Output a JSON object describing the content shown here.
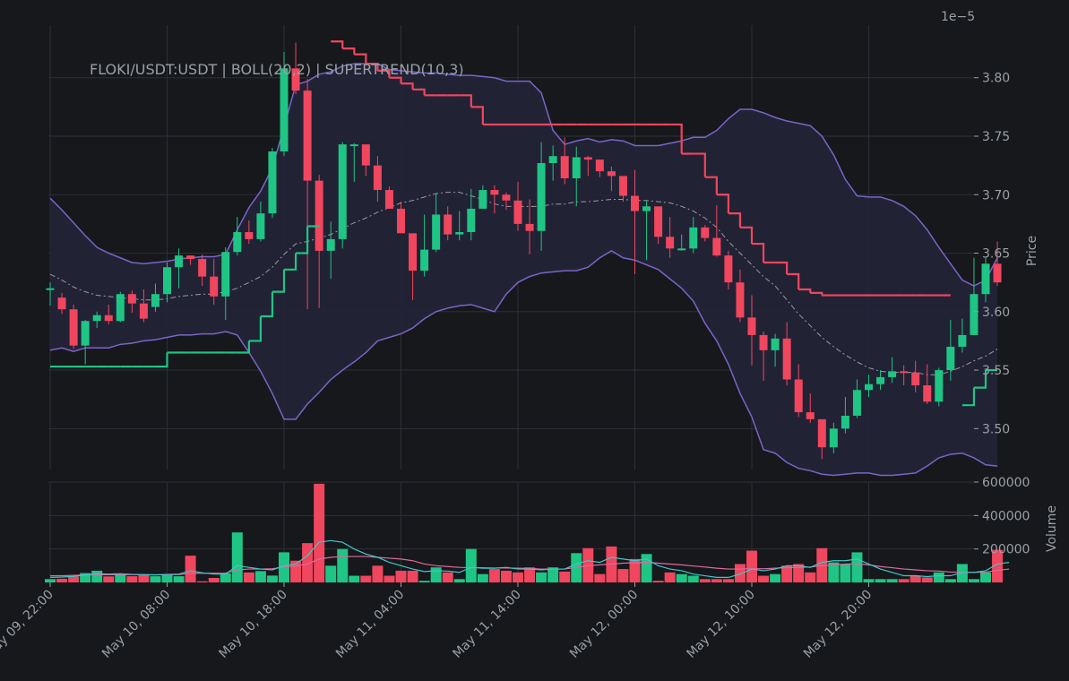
{
  "chart_data": {
    "type": "candlestick",
    "title": "FLOKI/USDT:USDT | BOLL(20,2) | SUPERTREND(10,3)",
    "price_axis": {
      "label": "Price",
      "multiplier_label": "1e−5",
      "range": [
        3.465,
        3.845
      ],
      "ticks": [
        3.5,
        3.55,
        3.6,
        3.65,
        3.7,
        3.75,
        3.8
      ],
      "tick_labels": [
        "3.50",
        "3.55",
        "3.60",
        "3.65",
        "3.70",
        "3.75",
        "3.80"
      ]
    },
    "volume_axis": {
      "label": "Volume",
      "range": [
        0,
        600000
      ],
      "ticks": [
        200000,
        400000,
        600000
      ],
      "tick_labels": [
        "200000",
        "400000",
        "600000"
      ]
    },
    "x_axis": {
      "ticks": [
        0,
        10,
        20,
        30,
        40,
        50,
        60,
        70
      ],
      "tick_labels": [
        "May 09, 22:00",
        "May 10, 08:00",
        "May 10, 18:00",
        "May 11, 04:00",
        "May 11, 14:00",
        "May 12, 00:00",
        "May 12, 10:00",
        "May 12, 20:00"
      ]
    },
    "grid": true,
    "colors": {
      "up": "#1fc584",
      "down": "#f0465e",
      "band": "#7b64c8",
      "band_fill": "#242338",
      "middle": "#9a9aa0",
      "supertrend_up": "#1fc584",
      "supertrend_down": "#f0465e",
      "vol_ma1": "#3fc8c8",
      "vol_ma2": "#e06aa0"
    },
    "candles": {
      "open": [
        3.62,
        3.612,
        3.602,
        3.571,
        3.592,
        3.597,
        3.592,
        3.615,
        3.607,
        3.604,
        3.615,
        3.638,
        3.648,
        3.645,
        3.63,
        3.613,
        3.651,
        3.668,
        3.662,
        3.684,
        3.737,
        3.808,
        3.789,
        3.712,
        3.652,
        3.662,
        3.743,
        3.743,
        3.725,
        3.704,
        3.688,
        3.667,
        3.635,
        3.653,
        3.683,
        3.666,
        3.668,
        3.688,
        3.704,
        3.7,
        3.695,
        3.675,
        3.669,
        3.727,
        3.733,
        3.714,
        3.732,
        3.73,
        3.72,
        3.716,
        3.699,
        3.686,
        3.69,
        3.664,
        3.654,
        3.654,
        3.672,
        3.663,
        3.648,
        3.625,
        3.595,
        3.58,
        3.567,
        3.577,
        3.542,
        3.514,
        3.508,
        3.484,
        3.5,
        3.511,
        3.533,
        3.538,
        3.544,
        3.549,
        3.548,
        3.537,
        3.523,
        3.55,
        3.57,
        3.58,
        3.615,
        3.641
      ],
      "close": [
        3.62,
        3.602,
        3.571,
        3.592,
        3.597,
        3.592,
        3.615,
        3.607,
        3.594,
        3.615,
        3.638,
        3.648,
        3.645,
        3.63,
        3.613,
        3.651,
        3.668,
        3.662,
        3.684,
        3.737,
        3.808,
        3.789,
        3.712,
        3.652,
        3.662,
        3.743,
        3.743,
        3.725,
        3.704,
        3.688,
        3.667,
        3.635,
        3.653,
        3.683,
        3.666,
        3.668,
        3.688,
        3.704,
        3.7,
        3.695,
        3.675,
        3.669,
        3.727,
        3.733,
        3.714,
        3.732,
        3.73,
        3.72,
        3.716,
        3.699,
        3.686,
        3.69,
        3.664,
        3.654,
        3.654,
        3.672,
        3.663,
        3.648,
        3.625,
        3.595,
        3.58,
        3.567,
        3.577,
        3.542,
        3.514,
        3.508,
        3.484,
        3.5,
        3.511,
        3.533,
        3.538,
        3.544,
        3.549,
        3.548,
        3.537,
        3.523,
        3.55,
        3.57,
        3.58,
        3.615,
        3.641,
        3.625
      ],
      "high": [
        3.625,
        3.616,
        3.606,
        3.593,
        3.6,
        3.606,
        3.617,
        3.618,
        3.619,
        3.624,
        3.642,
        3.654,
        3.648,
        3.649,
        3.645,
        3.655,
        3.681,
        3.678,
        3.694,
        3.74,
        3.822,
        3.83,
        3.799,
        3.717,
        3.677,
        3.745,
        3.744,
        3.734,
        3.733,
        3.707,
        3.694,
        3.658,
        3.683,
        3.701,
        3.69,
        3.686,
        3.705,
        3.708,
        3.708,
        3.702,
        3.711,
        3.696,
        3.745,
        3.742,
        3.749,
        3.741,
        3.733,
        3.73,
        3.724,
        3.713,
        3.721,
        3.695,
        3.69,
        3.681,
        3.666,
        3.681,
        3.674,
        3.691,
        3.652,
        3.636,
        3.614,
        3.583,
        3.581,
        3.591,
        3.555,
        3.53,
        3.496,
        3.505,
        3.527,
        3.542,
        3.546,
        3.55,
        3.561,
        3.554,
        3.558,
        3.555,
        3.552,
        3.593,
        3.594,
        3.646,
        3.647,
        3.66
      ],
      "low": [
        3.605,
        3.598,
        3.568,
        3.555,
        3.586,
        3.589,
        3.591,
        3.599,
        3.591,
        3.6,
        3.608,
        3.62,
        3.64,
        3.622,
        3.606,
        3.593,
        3.648,
        3.658,
        3.66,
        3.68,
        3.733,
        3.786,
        3.602,
        3.603,
        3.628,
        3.654,
        3.711,
        3.716,
        3.694,
        3.701,
        3.672,
        3.61,
        3.63,
        3.651,
        3.661,
        3.661,
        3.661,
        3.688,
        3.684,
        3.687,
        3.669,
        3.649,
        3.652,
        3.712,
        3.709,
        3.69,
        3.716,
        3.715,
        3.703,
        3.694,
        3.632,
        3.644,
        3.658,
        3.646,
        3.652,
        3.65,
        3.66,
        3.647,
        3.619,
        3.591,
        3.554,
        3.541,
        3.553,
        3.537,
        3.51,
        3.505,
        3.474,
        3.479,
        3.496,
        3.509,
        3.527,
        3.533,
        3.539,
        3.537,
        3.531,
        3.521,
        3.519,
        3.541,
        3.565,
        3.58,
        3.608,
        3.622
      ]
    },
    "volume": [
      20000,
      22000,
      35000,
      56000,
      70000,
      36000,
      50000,
      37000,
      43000,
      37000,
      50000,
      37000,
      160000,
      7000,
      27000,
      55000,
      299000,
      60000,
      68000,
      41000,
      180000,
      130000,
      235000,
      590000,
      100000,
      200000,
      40000,
      40000,
      100000,
      40000,
      70000,
      70000,
      10000,
      90000,
      60000,
      20000,
      200000,
      50000,
      80000,
      70000,
      60000,
      90000,
      60000,
      90000,
      65000,
      175000,
      205000,
      50000,
      215000,
      80000,
      140000,
      170000,
      10000,
      60000,
      50000,
      40000,
      20000,
      20000,
      20000,
      110000,
      190000,
      40000,
      50000,
      100000,
      110000,
      60000,
      205000,
      120000,
      110000,
      180000,
      20000,
      20000,
      20000,
      20000,
      40000,
      30000,
      60000,
      20000,
      110000,
      20000,
      60000,
      195000,
      100000
    ],
    "volume_ma_fast": [
      30000,
      32000,
      36000,
      45000,
      52000,
      50000,
      52000,
      48000,
      46000,
      45000,
      48000,
      50000,
      70000,
      58000,
      50000,
      50000,
      100000,
      90000,
      80000,
      75000,
      100000,
      110000,
      160000,
      240000,
      250000,
      240000,
      200000,
      170000,
      150000,
      120000,
      100000,
      80000,
      65000,
      70000,
      68000,
      60000,
      90000,
      85000,
      85000,
      90000,
      80000,
      80000,
      75000,
      80000,
      80000,
      110000,
      130000,
      120000,
      150000,
      140000,
      130000,
      140000,
      100000,
      80000,
      70000,
      50000,
      40000,
      30000,
      30000,
      50000,
      80000,
      70000,
      80000,
      100000,
      100000,
      90000,
      120000,
      130000,
      130000,
      140000,
      110000,
      80000,
      60000,
      40000,
      40000,
      35000,
      40000,
      40000,
      60000,
      60000,
      70000,
      110000,
      120000
    ],
    "volume_ma_slow": [
      40000,
      40000,
      42000,
      44000,
      46000,
      46000,
      47000,
      47000,
      47000,
      46000,
      47000,
      47000,
      55000,
      55000,
      55000,
      56000,
      75000,
      80000,
      80000,
      82000,
      92000,
      98000,
      110000,
      140000,
      150000,
      155000,
      155000,
      155000,
      150000,
      145000,
      140000,
      130000,
      110000,
      100000,
      95000,
      90000,
      88000,
      88000,
      86000,
      86000,
      85000,
      84000,
      80000,
      80000,
      80000,
      90000,
      100000,
      105000,
      110000,
      115000,
      118000,
      120000,
      115000,
      110000,
      105000,
      98000,
      92000,
      85000,
      80000,
      80000,
      82000,
      82000,
      85000,
      88000,
      90000,
      92000,
      100000,
      105000,
      110000,
      112000,
      105000,
      95000,
      88000,
      80000,
      75000,
      70000,
      68000,
      62000,
      62000,
      60000,
      62000,
      72000,
      80000
    ],
    "boll_upper": [
      3.697,
      3.687,
      3.676,
      3.665,
      3.655,
      3.65,
      3.646,
      3.642,
      3.641,
      3.642,
      3.643,
      3.645,
      3.646,
      3.647,
      3.647,
      3.649,
      3.67,
      3.689,
      3.703,
      3.723,
      3.758,
      3.794,
      3.797,
      3.803,
      3.805,
      3.81,
      3.812,
      3.812,
      3.812,
      3.807,
      3.806,
      3.805,
      3.804,
      3.804,
      3.803,
      3.802,
      3.802,
      3.801,
      3.8,
      3.797,
      3.797,
      3.797,
      3.787,
      3.755,
      3.743,
      3.746,
      3.748,
      3.745,
      3.747,
      3.746,
      3.742,
      3.742,
      3.742,
      3.744,
      3.746,
      3.749,
      3.749,
      3.755,
      3.765,
      3.773,
      3.773,
      3.77,
      3.766,
      3.763,
      3.761,
      3.759,
      3.75,
      3.734,
      3.713,
      3.699,
      3.698,
      3.698,
      3.695,
      3.69,
      3.682,
      3.67,
      3.655,
      3.641,
      3.627,
      3.622,
      3.627,
      3.646
    ],
    "boll_mid": [
      3.632,
      3.627,
      3.621,
      3.617,
      3.614,
      3.613,
      3.612,
      3.611,
      3.61,
      3.61,
      3.611,
      3.613,
      3.614,
      3.615,
      3.615,
      3.617,
      3.62,
      3.625,
      3.63,
      3.638,
      3.649,
      3.658,
      3.66,
      3.663,
      3.666,
      3.671,
      3.676,
      3.68,
      3.685,
      3.689,
      3.693,
      3.695,
      3.698,
      3.701,
      3.702,
      3.702,
      3.699,
      3.696,
      3.692,
      3.69,
      3.69,
      3.69,
      3.69,
      3.692,
      3.692,
      3.694,
      3.694,
      3.695,
      3.696,
      3.696,
      3.695,
      3.695,
      3.694,
      3.693,
      3.69,
      3.686,
      3.68,
      3.672,
      3.66,
      3.65,
      3.64,
      3.63,
      3.622,
      3.61,
      3.598,
      3.588,
      3.578,
      3.57,
      3.563,
      3.557,
      3.552,
      3.549,
      3.548,
      3.548,
      3.548,
      3.546,
      3.546,
      3.549,
      3.553,
      3.558,
      3.562,
      3.568
    ],
    "boll_lower": [
      3.567,
      3.569,
      3.566,
      3.569,
      3.569,
      3.569,
      3.572,
      3.573,
      3.575,
      3.576,
      3.578,
      3.58,
      3.58,
      3.581,
      3.581,
      3.583,
      3.58,
      3.565,
      3.549,
      3.53,
      3.508,
      3.508,
      3.521,
      3.531,
      3.542,
      3.55,
      3.557,
      3.565,
      3.575,
      3.578,
      3.581,
      3.586,
      3.594,
      3.6,
      3.603,
      3.605,
      3.606,
      3.603,
      3.6,
      3.615,
      3.625,
      3.63,
      3.633,
      3.634,
      3.635,
      3.635,
      3.638,
      3.646,
      3.652,
      3.646,
      3.644,
      3.64,
      3.636,
      3.628,
      3.62,
      3.609,
      3.59,
      3.575,
      3.555,
      3.53,
      3.51,
      3.482,
      3.479,
      3.471,
      3.466,
      3.464,
      3.461,
      3.46,
      3.461,
      3.462,
      3.462,
      3.46,
      3.46,
      3.461,
      3.462,
      3.468,
      3.475,
      3.478,
      3.479,
      3.475,
      3.469,
      3.468
    ],
    "supertrend": [
      3.553,
      3.553,
      3.553,
      3.553,
      3.553,
      3.553,
      3.553,
      3.553,
      3.553,
      3.553,
      3.565,
      3.565,
      3.565,
      3.565,
      3.565,
      3.565,
      3.565,
      3.575,
      3.596,
      3.617,
      3.636,
      3.65,
      3.673,
      3.673,
      3.831,
      3.825,
      3.82,
      3.812,
      3.806,
      3.8,
      3.795,
      3.79,
      3.785,
      3.785,
      3.785,
      3.785,
      3.775,
      3.76,
      3.76,
      3.76,
      3.76,
      3.76,
      3.76,
      3.76,
      3.76,
      3.76,
      3.76,
      3.76,
      3.76,
      3.76,
      3.76,
      3.76,
      3.76,
      3.76,
      3.735,
      3.735,
      3.715,
      3.7,
      3.684,
      3.672,
      3.658,
      3.642,
      3.642,
      3.632,
      3.619,
      3.616,
      3.614,
      3.614,
      3.614,
      3.614,
      3.614,
      3.614,
      3.614,
      3.614,
      3.614,
      3.614,
      3.614,
      3.614,
      3.52,
      3.535,
      3.55,
      3.55
    ],
    "supertrend_dir": [
      1,
      1,
      1,
      1,
      1,
      1,
      1,
      1,
      1,
      1,
      1,
      1,
      1,
      1,
      1,
      1,
      1,
      1,
      1,
      1,
      1,
      1,
      1,
      1,
      -1,
      -1,
      -1,
      -1,
      -1,
      -1,
      -1,
      -1,
      -1,
      -1,
      -1,
      -1,
      -1,
      -1,
      -1,
      -1,
      -1,
      -1,
      -1,
      -1,
      -1,
      -1,
      -1,
      -1,
      -1,
      -1,
      -1,
      -1,
      -1,
      -1,
      -1,
      -1,
      -1,
      -1,
      -1,
      -1,
      -1,
      -1,
      -1,
      -1,
      -1,
      -1,
      -1,
      -1,
      -1,
      -1,
      -1,
      -1,
      -1,
      -1,
      -1,
      -1,
      -1,
      -1,
      1,
      1,
      1,
      1
    ]
  }
}
